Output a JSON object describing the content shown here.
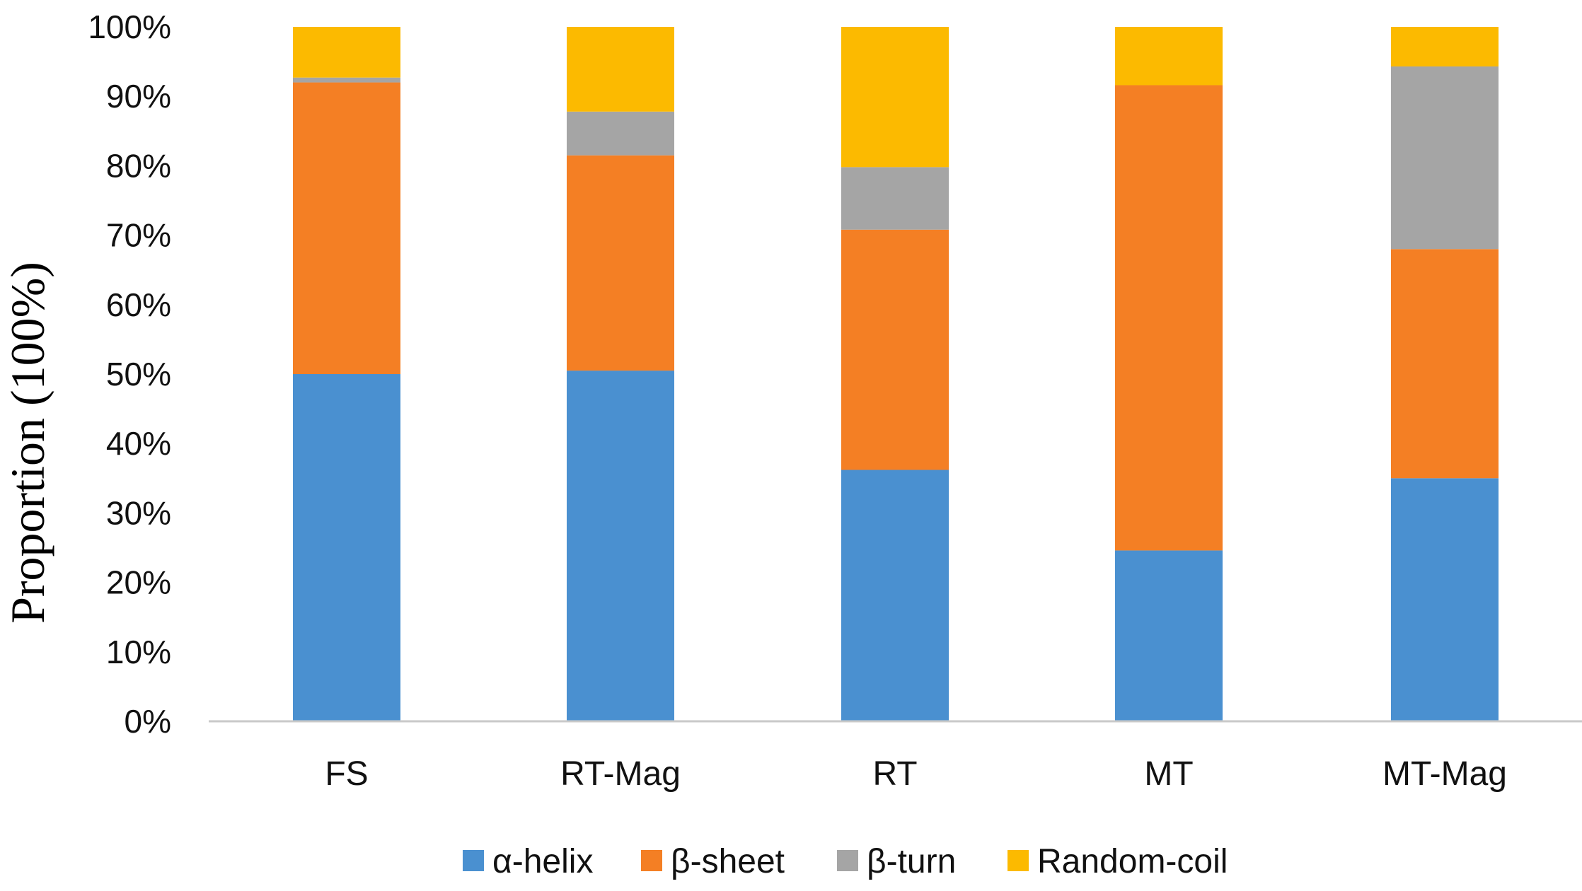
{
  "chart_data": {
    "type": "bar",
    "stacked": true,
    "percent_stacked": true,
    "title": "",
    "xlabel": "",
    "ylabel": "Proportion (100%)",
    "ylim": [
      0,
      100
    ],
    "yticks": [
      "0%",
      "10%",
      "20%",
      "30%",
      "40%",
      "50%",
      "60%",
      "70%",
      "80%",
      "90%",
      "100%"
    ],
    "categories": [
      "FS",
      "RT-Mag",
      "RT",
      "MT",
      "MT-Mag"
    ],
    "series": [
      {
        "name": "α-helix",
        "color": "#4a90d0",
        "values": [
          50.0,
          50.5,
          36.2,
          24.6,
          35.0
        ]
      },
      {
        "name": "β-sheet",
        "color": "#f47f24",
        "values": [
          42.0,
          31.0,
          34.6,
          67.0,
          33.0
        ]
      },
      {
        "name": "β-turn",
        "color": "#a5a5a5",
        "values": [
          0.7,
          6.3,
          9.0,
          0.0,
          26.3
        ]
      },
      {
        "name": "Random-coil",
        "color": "#fcba00",
        "values": [
          7.3,
          12.2,
          20.2,
          8.4,
          5.7
        ]
      }
    ],
    "legend_position": "bottom",
    "grid": false
  }
}
